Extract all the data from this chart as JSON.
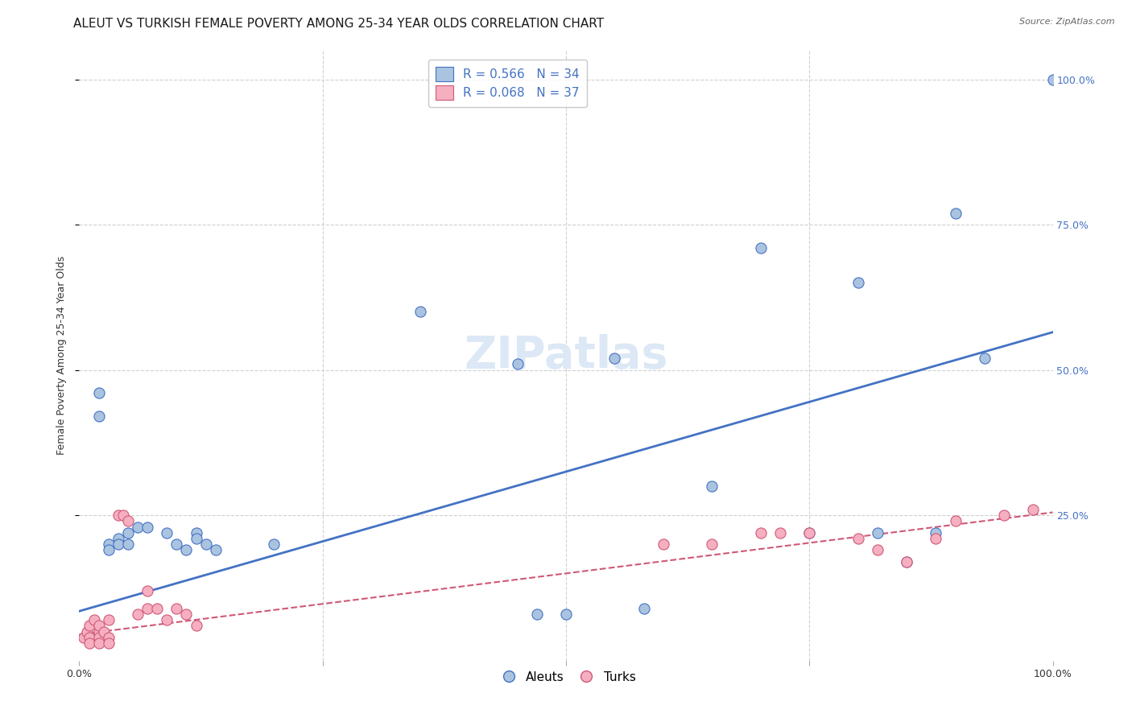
{
  "title": "ALEUT VS TURKISH FEMALE POVERTY AMONG 25-34 YEAR OLDS CORRELATION CHART",
  "source": "Source: ZipAtlas.com",
  "ylabel": "Female Poverty Among 25-34 Year Olds",
  "xlim": [
    0,
    1.0
  ],
  "ylim": [
    0,
    1.05
  ],
  "xtick_labels": [
    "0.0%",
    "",
    "",
    "",
    "100.0%"
  ],
  "xtick_vals": [
    0.0,
    0.25,
    0.5,
    0.75,
    1.0
  ],
  "ytick_vals": [
    0.25,
    0.5,
    0.75,
    1.0
  ],
  "ytick_labels_right": [
    "25.0%",
    "50.0%",
    "75.0%",
    "100.0%"
  ],
  "watermark": "ZIPatlas",
  "legend_aleut": "R = 0.566   N = 34",
  "legend_turk": "R = 0.068   N = 37",
  "aleut_color": "#aac4e0",
  "turk_color": "#f5afc0",
  "aleut_line_color": "#4472c4",
  "turk_line_color": "#d05878",
  "aleut_points": [
    [
      0.02,
      0.46
    ],
    [
      0.02,
      0.42
    ],
    [
      0.03,
      0.2
    ],
    [
      0.03,
      0.19
    ],
    [
      0.04,
      0.21
    ],
    [
      0.04,
      0.2
    ],
    [
      0.05,
      0.22
    ],
    [
      0.05,
      0.2
    ],
    [
      0.06,
      0.23
    ],
    [
      0.07,
      0.23
    ],
    [
      0.09,
      0.22
    ],
    [
      0.1,
      0.2
    ],
    [
      0.11,
      0.19
    ],
    [
      0.12,
      0.22
    ],
    [
      0.12,
      0.21
    ],
    [
      0.13,
      0.2
    ],
    [
      0.14,
      0.19
    ],
    [
      0.2,
      0.2
    ],
    [
      0.35,
      0.6
    ],
    [
      0.45,
      0.51
    ],
    [
      0.47,
      0.08
    ],
    [
      0.5,
      0.08
    ],
    [
      0.55,
      0.52
    ],
    [
      0.58,
      0.09
    ],
    [
      0.65,
      0.3
    ],
    [
      0.7,
      0.71
    ],
    [
      0.75,
      0.22
    ],
    [
      0.8,
      0.65
    ],
    [
      0.82,
      0.22
    ],
    [
      0.85,
      0.17
    ],
    [
      0.88,
      0.22
    ],
    [
      0.9,
      0.77
    ],
    [
      0.93,
      0.52
    ],
    [
      1.0,
      1.0
    ]
  ],
  "turk_points": [
    [
      0.005,
      0.04
    ],
    [
      0.008,
      0.05
    ],
    [
      0.01,
      0.06
    ],
    [
      0.01,
      0.04
    ],
    [
      0.01,
      0.03
    ],
    [
      0.015,
      0.07
    ],
    [
      0.02,
      0.05
    ],
    [
      0.02,
      0.06
    ],
    [
      0.02,
      0.04
    ],
    [
      0.02,
      0.03
    ],
    [
      0.025,
      0.05
    ],
    [
      0.03,
      0.07
    ],
    [
      0.03,
      0.04
    ],
    [
      0.03,
      0.03
    ],
    [
      0.04,
      0.25
    ],
    [
      0.045,
      0.25
    ],
    [
      0.05,
      0.24
    ],
    [
      0.06,
      0.08
    ],
    [
      0.07,
      0.09
    ],
    [
      0.07,
      0.12
    ],
    [
      0.08,
      0.09
    ],
    [
      0.09,
      0.07
    ],
    [
      0.1,
      0.09
    ],
    [
      0.11,
      0.08
    ],
    [
      0.12,
      0.06
    ],
    [
      0.6,
      0.2
    ],
    [
      0.65,
      0.2
    ],
    [
      0.7,
      0.22
    ],
    [
      0.72,
      0.22
    ],
    [
      0.75,
      0.22
    ],
    [
      0.8,
      0.21
    ],
    [
      0.82,
      0.19
    ],
    [
      0.85,
      0.17
    ],
    [
      0.88,
      0.21
    ],
    [
      0.9,
      0.24
    ],
    [
      0.95,
      0.25
    ],
    [
      0.98,
      0.26
    ]
  ],
  "aleut_trend": [
    0.0,
    0.085,
    1.0,
    0.565
  ],
  "turk_trend": [
    0.0,
    0.045,
    1.0,
    0.255
  ],
  "bg_color": "#ffffff",
  "grid_color": "#d0d0d0",
  "title_fontsize": 11,
  "ylabel_fontsize": 9,
  "tick_fontsize": 9,
  "watermark_fontsize": 40,
  "watermark_color": "#dce8f5",
  "source_fontsize": 8
}
